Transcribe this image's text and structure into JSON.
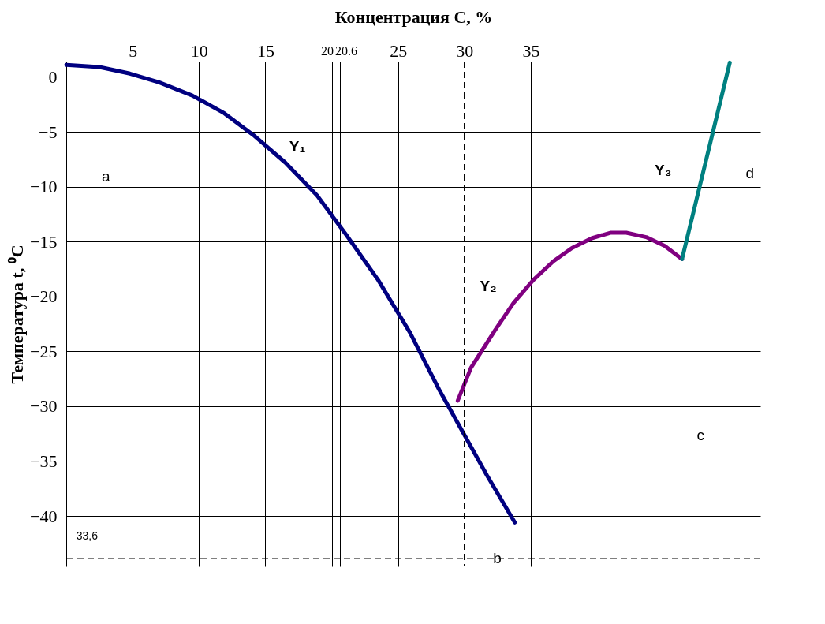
{
  "chart_data": {
    "type": "line",
    "xlabel": "Концентрация С, %",
    "ylabel": "Температура t, ⁰C",
    "xlim": [
      0,
      52.3
    ],
    "ylim": [
      -44.6,
      1.4
    ],
    "xticks": [
      5,
      10,
      15,
      20,
      20.6,
      25,
      30,
      35
    ],
    "yticks": [
      0,
      -5,
      -10,
      -15,
      -20,
      -25,
      -30,
      -35,
      -40
    ],
    "grid": true,
    "line_style": "solid",
    "marker": "none",
    "series": [
      {
        "color": "#000080",
        "x": [
          0,
          2.5,
          4.8,
          7.0,
          9.5,
          11.9,
          14.1,
          16.5,
          18.9,
          21.1,
          23.5,
          25.9,
          28.1,
          29.9,
          31.7,
          33.8
        ],
        "values": [
          1.1,
          0.9,
          0.3,
          -0.5,
          -1.7,
          -3.3,
          -5.3,
          -7.8,
          -10.8,
          -14.4,
          -18.5,
          -23.3,
          -28.5,
          -32.4,
          -36.3,
          -40.6
        ]
      },
      {
        "color": "#800080",
        "x": [
          29.5,
          30.5,
          32.3,
          33.7,
          35.2,
          36.7,
          38.1,
          39.6,
          41.0,
          42.2,
          43.7,
          45.1,
          46.4
        ],
        "values": [
          -29.5,
          -26.5,
          -23.1,
          -20.6,
          -18.5,
          -16.8,
          -15.6,
          -14.7,
          -14.2,
          -14.2,
          -14.6,
          -15.4,
          -16.6
        ]
      },
      {
        "color": "#008080",
        "x": [
          46.4,
          50.0
        ],
        "values": [
          -16.6,
          1.3
        ]
      }
    ],
    "ref_lines": [
      {
        "axis": "x",
        "value": 30.0,
        "line_style": "dashed",
        "color": "#000000"
      },
      {
        "axis": "y",
        "value": -43.9,
        "line_style": "dashed",
        "color": "#000000"
      }
    ],
    "annotations": [
      "Y₁",
      "Y₂",
      "Y₃",
      "33,6",
      "a",
      "b",
      "c",
      "d"
    ]
  }
}
